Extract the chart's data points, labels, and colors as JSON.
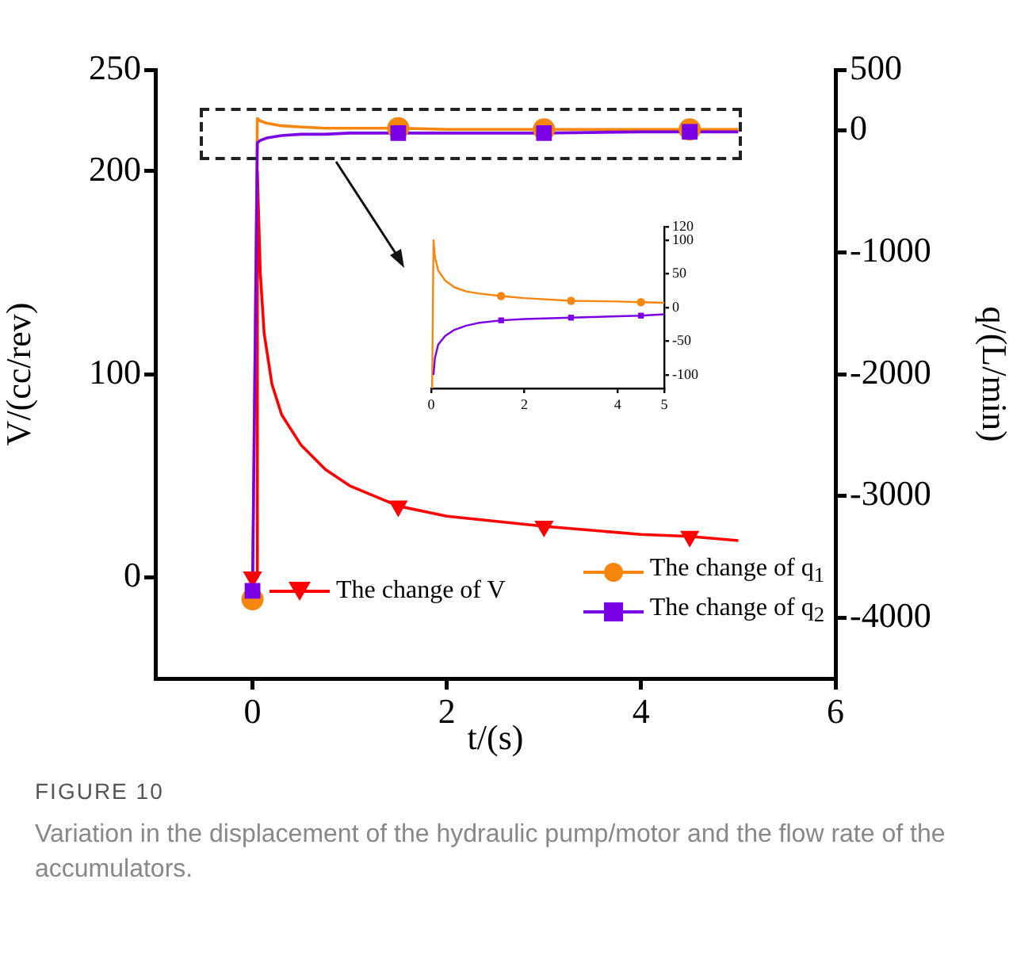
{
  "chart_data": [
    {
      "type": "line",
      "xlabel": "t/(s)",
      "ylabel": "V/(cc/rev)",
      "y2label": "q/(L/min)",
      "xlim": [
        -1,
        6
      ],
      "xticks": [
        0,
        2,
        4,
        6
      ],
      "ylim": [
        -50,
        250
      ],
      "yticks": [
        0,
        100,
        200,
        250
      ],
      "y2lim": [
        -4500,
        500
      ],
      "y2ticks": [
        500,
        0,
        -1000,
        -2000,
        -3000,
        -4000
      ],
      "grid": false,
      "legend": "bottom",
      "series": [
        {
          "name": "The change of V",
          "color": "#ff0000",
          "x": [
            0,
            0.05,
            0.05,
            0.08,
            0.12,
            0.2,
            0.3,
            0.5,
            0.75,
            1,
            1.5,
            2,
            3,
            4,
            4.5,
            5
          ],
          "values": [
            0,
            0,
            200,
            150,
            120,
            95,
            80,
            65,
            53,
            45,
            35,
            30,
            25,
            21,
            20,
            18
          ]
        },
        {
          "type": "scatter",
          "marker": "triangle",
          "color": "#ff0000",
          "x": [
            0,
            1.5,
            3,
            4.5
          ],
          "values": [
            0,
            35,
            25,
            20
          ]
        },
        {
          "name": "The change of q$_{1}$",
          "axis": "y2",
          "color": "#f7860f",
          "x": [
            0,
            0.05,
            0.08,
            0.15,
            0.3,
            0.5,
            0.75,
            1,
            1.5,
            2,
            3,
            4,
            4.5,
            5
          ],
          "values": [
            -3850,
            100,
            80,
            60,
            40,
            30,
            20,
            20,
            20,
            10,
            10,
            10,
            10,
            10
          ]
        },
        {
          "type": "scatter",
          "marker": "circle",
          "axis": "y2",
          "color": "#f7860f",
          "x": [
            0,
            1.5,
            3,
            4.5
          ],
          "values": [
            -3850,
            20,
            10,
            10
          ]
        },
        {
          "name": "The change of q$_{2}$",
          "axis": "y2",
          "color": "#7a00e6",
          "x": [
            0,
            0.05,
            0.08,
            0.15,
            0.3,
            0.5,
            0.75,
            1,
            1.5,
            2,
            3,
            4,
            4.5,
            5
          ],
          "values": [
            -3780,
            -100,
            -80,
            -60,
            -40,
            -30,
            -30,
            -20,
            -20,
            -20,
            -20,
            -10,
            -10,
            -10
          ]
        },
        {
          "type": "scatter",
          "marker": "square",
          "axis": "y2",
          "color": "#7a00e6",
          "x": [
            0,
            1.5,
            3,
            4.5
          ],
          "values": [
            -3780,
            -20,
            -20,
            -10
          ]
        }
      ],
      "annotations": [
        "FIGURE 10",
        "Variation in the displacement of the hydraulic pump/motor and the flow rate of the accumulators."
      ]
    },
    {
      "type": "line",
      "xlim": [
        0,
        5
      ],
      "xticks": [
        0,
        2,
        4,
        5
      ],
      "ylim": [
        -120,
        120
      ],
      "yticks": [
        120,
        100,
        50,
        0,
        -50,
        -100
      ],
      "grid": false,
      "series": [
        {
          "color": "#f7860f",
          "x": [
            0.02,
            0.05,
            0.08,
            0.15,
            0.3,
            0.5,
            0.75,
            1,
            1.5,
            2,
            3,
            4,
            4.5,
            5
          ],
          "values": [
            -120,
            100,
            75,
            55,
            40,
            30,
            24,
            21,
            17,
            14,
            10,
            9,
            8,
            7
          ]
        },
        {
          "type": "scatter",
          "marker": "circle",
          "color": "#f7860f",
          "x": [
            1.5,
            3,
            4.5
          ],
          "values": [
            17,
            10,
            8
          ]
        },
        {
          "color": "#7a00e6",
          "x": [
            0.05,
            0.08,
            0.15,
            0.3,
            0.5,
            0.75,
            1,
            1.5,
            2,
            3,
            4,
            4.5,
            5
          ],
          "values": [
            -100,
            -75,
            -55,
            -42,
            -33,
            -27,
            -23,
            -19,
            -17,
            -15,
            -13,
            -12,
            -10
          ]
        },
        {
          "type": "scatter",
          "marker": "square",
          "color": "#7a00e6",
          "x": [
            1.5,
            3,
            4.5
          ],
          "values": [
            -19,
            -15,
            -12
          ]
        }
      ]
    }
  ]
}
